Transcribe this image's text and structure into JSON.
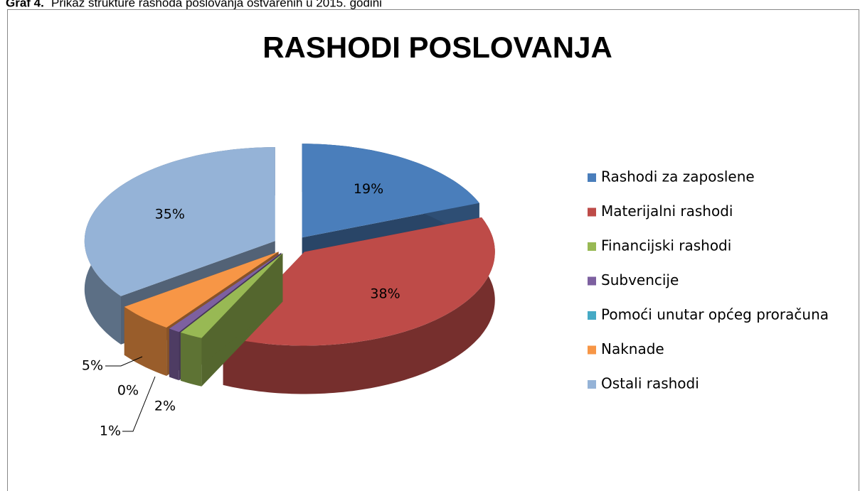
{
  "caption": {
    "label": "Graf 4.",
    "text": "Prikaz strukture rashoda poslovanja ostvarenih u 2015. godini"
  },
  "chart_data": {
    "type": "pie",
    "title": "RASHODI POSLOVANJA",
    "categories": [
      "Rashodi za zaposlene",
      "Materijalni rashodi",
      "Financijski rashodi",
      "Subvencije",
      "Pomoći unutar općeg proračuna",
      "Naknade",
      "Ostali rashodi"
    ],
    "values": [
      19,
      38,
      2,
      1,
      0,
      5,
      35
    ],
    "value_labels": [
      "19%",
      "38%",
      "2%",
      "1%",
      "0%",
      "5%",
      "35%"
    ],
    "colors": [
      "#4a7ebb",
      "#be4b48",
      "#98b954",
      "#7d60a0",
      "#46aac5",
      "#f79646",
      "#95b3d7"
    ],
    "legend": "right",
    "three_d": true,
    "exploded": true
  }
}
